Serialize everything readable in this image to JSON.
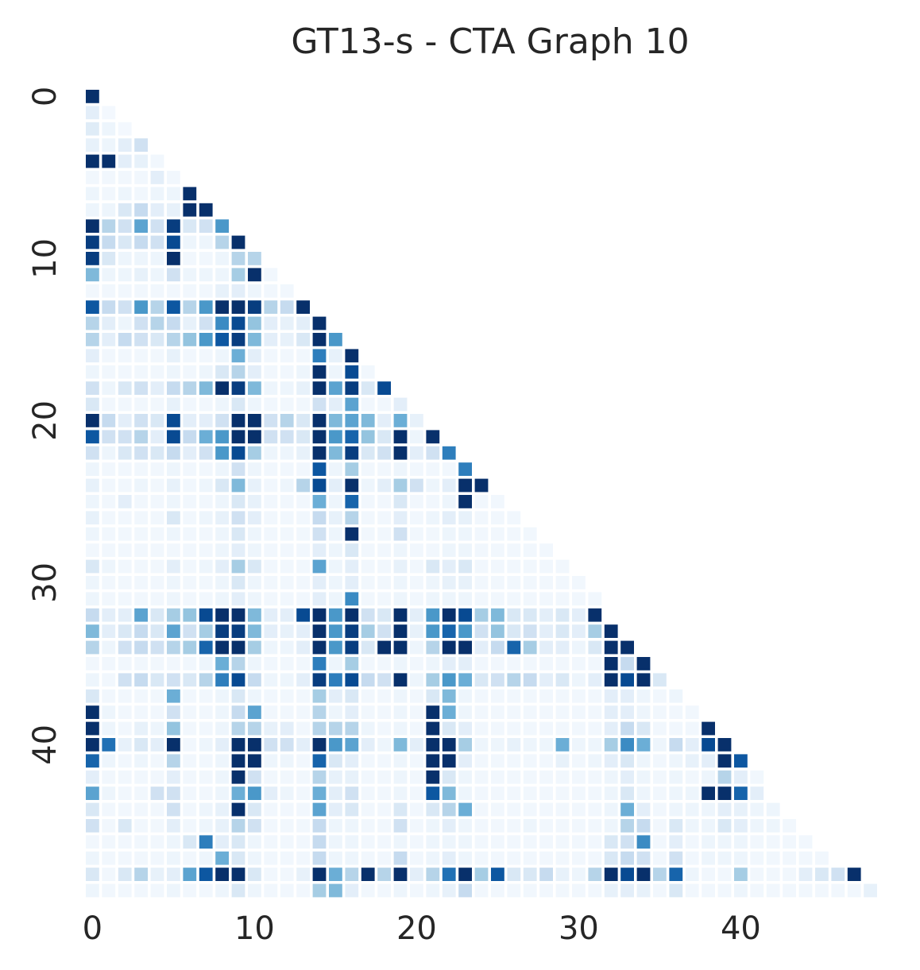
{
  "chart_data": {
    "type": "heatmap",
    "title": "GT13-s - CTA Graph 10",
    "colormap": "Blues",
    "mask": "upper-triangle",
    "n": 49,
    "value_range": [
      0,
      1
    ],
    "x_ticks": [
      {
        "index": 0,
        "label": "0"
      },
      {
        "index": 10,
        "label": "10"
      },
      {
        "index": 20,
        "label": "20"
      },
      {
        "index": 30,
        "label": "30"
      },
      {
        "index": 40,
        "label": "40"
      }
    ],
    "y_ticks": [
      {
        "index": 0,
        "label": "0"
      },
      {
        "index": 10,
        "label": "10"
      },
      {
        "index": 20,
        "label": "20"
      },
      {
        "index": 30,
        "label": "30"
      },
      {
        "index": 40,
        "label": "40"
      }
    ],
    "rows": [
      [
        1.0
      ],
      [
        0.1,
        0.02
      ],
      [
        0.12,
        0.05,
        0.02
      ],
      [
        0.08,
        0.05,
        0.1,
        0.2
      ],
      [
        1.0,
        1.0,
        0.1,
        0.08,
        0.03
      ],
      [
        0.03,
        0.03,
        0.03,
        0.03,
        0.1,
        0.03
      ],
      [
        0.05,
        0.03,
        0.05,
        0.03,
        0.05,
        0.05,
        1.0
      ],
      [
        0.05,
        0.05,
        0.15,
        0.25,
        0.1,
        0.08,
        1.0,
        1.0
      ],
      [
        1.0,
        0.3,
        0.2,
        0.55,
        0.2,
        0.95,
        0.15,
        0.2,
        0.6
      ],
      [
        0.95,
        0.25,
        0.15,
        0.25,
        0.2,
        0.9,
        0.05,
        0.05,
        0.3,
        1.0
      ],
      [
        0.95,
        0.15,
        0.05,
        0.05,
        0.05,
        1.0,
        0.03,
        0.03,
        0.05,
        0.3,
        0.3
      ],
      [
        0.45,
        0.05,
        0.05,
        0.08,
        0.05,
        0.2,
        0.05,
        0.05,
        0.05,
        0.35,
        1.0,
        0.03
      ],
      [
        0.03,
        0.03,
        0.03,
        0.03,
        0.03,
        0.03,
        0.03,
        0.03,
        0.08,
        0.1,
        0.05,
        0.03,
        0.03
      ],
      [
        0.85,
        0.25,
        0.2,
        0.6,
        0.3,
        0.85,
        0.3,
        0.6,
        1.0,
        1.0,
        0.95,
        0.3,
        0.25,
        1.0
      ],
      [
        0.3,
        0.1,
        0.05,
        0.2,
        0.3,
        0.25,
        0.08,
        0.2,
        0.65,
        0.9,
        0.4,
        0.1,
        0.08,
        0.1,
        1.0
      ],
      [
        0.3,
        0.1,
        0.25,
        0.2,
        0.15,
        0.3,
        0.4,
        0.6,
        0.85,
        0.95,
        0.45,
        0.1,
        0.08,
        0.15,
        1.0,
        0.6
      ],
      [
        0.1,
        0.03,
        0.03,
        0.03,
        0.03,
        0.08,
        0.03,
        0.03,
        0.05,
        0.5,
        0.1,
        0.03,
        0.03,
        0.03,
        0.7,
        0.08,
        1.0
      ],
      [
        0.05,
        0.03,
        0.03,
        0.03,
        0.03,
        0.05,
        0.03,
        0.05,
        0.15,
        0.3,
        0.1,
        0.03,
        0.03,
        0.05,
        1.0,
        0.05,
        0.9,
        0.03
      ],
      [
        0.2,
        0.05,
        0.15,
        0.2,
        0.1,
        0.25,
        0.3,
        0.45,
        1.0,
        0.95,
        0.45,
        0.05,
        0.05,
        0.08,
        1.0,
        0.55,
        0.95,
        0.15,
        0.9
      ],
      [
        0.15,
        0.03,
        0.03,
        0.03,
        0.03,
        0.08,
        0.03,
        0.03,
        0.05,
        0.15,
        0.05,
        0.03,
        0.03,
        0.03,
        0.2,
        0.1,
        0.55,
        0.03,
        0.03,
        0.1
      ],
      [
        1.0,
        0.25,
        0.1,
        0.2,
        0.15,
        0.9,
        0.1,
        0.1,
        0.2,
        1.0,
        1.0,
        0.2,
        0.3,
        0.15,
        1.0,
        0.45,
        0.55,
        0.45,
        0.1,
        0.5,
        0.08
      ],
      [
        0.85,
        0.2,
        0.2,
        0.3,
        0.1,
        0.9,
        0.25,
        0.5,
        0.6,
        1.0,
        1.0,
        0.2,
        0.2,
        0.15,
        1.0,
        0.6,
        0.8,
        0.4,
        0.15,
        1.0,
        0.05,
        1.0
      ],
      [
        0.2,
        0.05,
        0.15,
        0.2,
        0.15,
        0.25,
        0.1,
        0.2,
        0.6,
        0.9,
        0.35,
        0.05,
        0.05,
        0.08,
        1.0,
        0.45,
        0.95,
        0.15,
        0.2,
        1.0,
        0.1,
        0.2,
        0.7
      ],
      [
        0.05,
        0.03,
        0.03,
        0.03,
        0.03,
        0.05,
        0.03,
        0.03,
        0.05,
        0.2,
        0.05,
        0.03,
        0.03,
        0.03,
        0.85,
        0.05,
        0.35,
        0.03,
        0.03,
        0.05,
        0.03,
        0.03,
        0.03,
        0.7
      ],
      [
        0.08,
        0.03,
        0.03,
        0.05,
        0.03,
        0.08,
        0.03,
        0.05,
        0.15,
        0.45,
        0.08,
        0.03,
        0.05,
        0.3,
        0.9,
        0.1,
        1.0,
        0.05,
        0.1,
        0.35,
        0.2,
        0.05,
        0.1,
        1.0,
        1.0
      ],
      [
        0.05,
        0.03,
        0.1,
        0.03,
        0.03,
        0.05,
        0.03,
        0.03,
        0.05,
        0.15,
        0.08,
        0.03,
        0.03,
        0.03,
        0.5,
        0.05,
        0.8,
        0.03,
        0.03,
        0.15,
        0.03,
        0.03,
        0.05,
        1.0,
        0.03,
        0.03
      ],
      [
        0.08,
        0.03,
        0.03,
        0.03,
        0.03,
        0.15,
        0.03,
        0.05,
        0.08,
        0.2,
        0.1,
        0.03,
        0.03,
        0.03,
        0.25,
        0.08,
        0.3,
        0.03,
        0.03,
        0.1,
        0.03,
        0.05,
        0.1,
        0.08,
        0.03,
        0.03,
        0.03
      ],
      [
        0.05,
        0.03,
        0.03,
        0.03,
        0.03,
        0.05,
        0.03,
        0.03,
        0.05,
        0.15,
        0.05,
        0.03,
        0.03,
        0.03,
        0.2,
        0.05,
        1.0,
        0.03,
        0.03,
        0.2,
        0.03,
        0.03,
        0.05,
        0.05,
        0.03,
        0.03,
        0.03,
        0.03
      ],
      [
        0.03,
        0.03,
        0.03,
        0.03,
        0.03,
        0.03,
        0.03,
        0.03,
        0.05,
        0.1,
        0.05,
        0.03,
        0.03,
        0.03,
        0.1,
        0.05,
        0.15,
        0.03,
        0.03,
        0.05,
        0.03,
        0.03,
        0.05,
        0.05,
        0.03,
        0.03,
        0.03,
        0.03,
        0.03
      ],
      [
        0.15,
        0.05,
        0.03,
        0.03,
        0.03,
        0.1,
        0.03,
        0.05,
        0.1,
        0.35,
        0.15,
        0.03,
        0.03,
        0.03,
        0.55,
        0.05,
        0.1,
        0.03,
        0.03,
        0.08,
        0.03,
        0.15,
        0.1,
        0.15,
        0.03,
        0.03,
        0.03,
        0.03,
        0.03,
        0.03
      ],
      [
        0.05,
        0.03,
        0.03,
        0.03,
        0.03,
        0.05,
        0.03,
        0.03,
        0.05,
        0.15,
        0.05,
        0.03,
        0.03,
        0.03,
        0.1,
        0.05,
        0.1,
        0.03,
        0.03,
        0.05,
        0.03,
        0.05,
        0.08,
        0.08,
        0.03,
        0.03,
        0.03,
        0.03,
        0.03,
        0.03,
        0.03
      ],
      [
        0.05,
        0.03,
        0.03,
        0.03,
        0.03,
        0.05,
        0.03,
        0.03,
        0.05,
        0.1,
        0.05,
        0.03,
        0.03,
        0.03,
        0.1,
        0.05,
        0.65,
        0.03,
        0.03,
        0.05,
        0.03,
        0.05,
        0.05,
        0.05,
        0.03,
        0.03,
        0.03,
        0.03,
        0.03,
        0.03,
        0.03,
        0.03
      ],
      [
        0.25,
        0.1,
        0.1,
        0.55,
        0.15,
        0.35,
        0.4,
        0.9,
        1.0,
        1.0,
        0.45,
        0.1,
        0.1,
        0.9,
        1.0,
        0.6,
        1.0,
        0.2,
        0.15,
        1.0,
        0.1,
        0.6,
        1.0,
        0.9,
        0.35,
        0.45,
        0.15,
        0.15,
        0.1,
        0.15,
        0.1,
        1.0
      ],
      [
        0.45,
        0.1,
        0.15,
        0.25,
        0.15,
        0.55,
        0.2,
        0.35,
        0.95,
        0.95,
        0.45,
        0.1,
        0.08,
        0.1,
        1.0,
        0.6,
        0.95,
        0.35,
        0.2,
        1.0,
        0.08,
        0.6,
        0.8,
        0.6,
        0.2,
        0.4,
        0.15,
        0.2,
        0.1,
        0.15,
        0.1,
        0.35,
        1.0
      ],
      [
        0.3,
        0.05,
        0.2,
        0.25,
        0.2,
        0.3,
        0.35,
        0.8,
        1.0,
        1.0,
        0.35,
        0.05,
        0.05,
        0.1,
        1.0,
        0.6,
        0.95,
        0.15,
        1.0,
        1.0,
        0.05,
        0.3,
        1.0,
        1.0,
        0.1,
        0.25,
        0.8,
        0.35,
        0.1,
        0.1,
        0.05,
        0.15,
        1.0,
        1.0
      ],
      [
        0.03,
        0.03,
        0.03,
        0.03,
        0.03,
        0.03,
        0.03,
        0.05,
        0.5,
        0.3,
        0.05,
        0.03,
        0.03,
        0.03,
        0.7,
        0.05,
        0.35,
        0.03,
        0.03,
        0.05,
        0.03,
        0.05,
        0.1,
        0.1,
        0.03,
        0.03,
        0.03,
        0.03,
        0.03,
        0.03,
        0.03,
        0.03,
        1.0,
        0.25,
        1.0
      ],
      [
        0.05,
        0.03,
        0.2,
        0.25,
        0.15,
        0.2,
        0.15,
        0.3,
        0.7,
        0.9,
        0.25,
        0.05,
        0.05,
        0.1,
        0.95,
        0.7,
        0.9,
        0.25,
        0.2,
        1.0,
        0.05,
        0.35,
        0.6,
        0.5,
        0.15,
        0.2,
        0.3,
        0.25,
        0.1,
        0.15,
        0.05,
        0.1,
        1.0,
        0.9,
        1.0,
        0.15
      ],
      [
        0.15,
        0.03,
        0.03,
        0.03,
        0.03,
        0.5,
        0.03,
        0.03,
        0.05,
        0.15,
        0.05,
        0.03,
        0.03,
        0.03,
        0.35,
        0.1,
        0.15,
        0.03,
        0.03,
        0.05,
        0.03,
        0.15,
        0.45,
        0.05,
        0.03,
        0.03,
        0.03,
        0.03,
        0.03,
        0.03,
        0.03,
        0.03,
        0.1,
        0.1,
        0.05,
        0.03,
        0.05
      ],
      [
        1.0,
        0.05,
        0.03,
        0.03,
        0.03,
        0.2,
        0.03,
        0.03,
        0.05,
        0.25,
        0.55,
        0.03,
        0.03,
        0.03,
        0.3,
        0.05,
        0.1,
        0.03,
        0.03,
        0.05,
        0.03,
        1.0,
        0.5,
        0.05,
        0.03,
        0.03,
        0.03,
        0.03,
        0.03,
        0.03,
        0.03,
        0.03,
        0.1,
        0.1,
        0.05,
        0.03,
        0.03,
        0.03
      ],
      [
        1.0,
        0.05,
        0.03,
        0.08,
        0.05,
        0.4,
        0.03,
        0.03,
        0.05,
        0.3,
        0.3,
        0.08,
        0.1,
        0.03,
        0.3,
        0.3,
        0.3,
        0.05,
        0.03,
        0.05,
        0.03,
        1.0,
        0.15,
        0.1,
        0.03,
        0.03,
        0.03,
        0.03,
        0.03,
        0.03,
        0.03,
        0.03,
        0.1,
        0.25,
        0.15,
        0.03,
        0.03,
        0.03,
        1.0
      ],
      [
        1.0,
        0.75,
        0.08,
        0.15,
        0.1,
        1.0,
        0.03,
        0.05,
        0.1,
        1.0,
        1.0,
        0.2,
        0.2,
        0.1,
        1.0,
        0.6,
        0.55,
        0.1,
        0.05,
        0.45,
        0.1,
        1.0,
        1.0,
        0.35,
        0.05,
        0.05,
        0.08,
        0.05,
        0.05,
        0.5,
        0.05,
        0.05,
        0.35,
        0.65,
        0.5,
        0.05,
        0.25,
        0.1,
        0.9,
        1.0
      ],
      [
        0.8,
        0.05,
        0.03,
        0.05,
        0.03,
        0.3,
        0.03,
        0.03,
        0.05,
        1.0,
        1.0,
        0.05,
        0.05,
        0.03,
        0.8,
        0.15,
        0.1,
        0.03,
        0.03,
        0.05,
        0.03,
        1.0,
        1.0,
        0.1,
        0.03,
        0.03,
        0.03,
        0.03,
        0.03,
        0.08,
        0.03,
        0.05,
        0.1,
        0.15,
        0.05,
        0.03,
        0.05,
        0.08,
        0.1,
        1.0,
        0.85
      ],
      [
        0.1,
        0.03,
        0.03,
        0.03,
        0.03,
        0.1,
        0.03,
        0.03,
        0.05,
        1.0,
        0.2,
        0.03,
        0.03,
        0.03,
        0.3,
        0.08,
        0.08,
        0.03,
        0.03,
        0.05,
        0.03,
        1.0,
        0.15,
        0.05,
        0.03,
        0.03,
        0.03,
        0.03,
        0.03,
        0.03,
        0.03,
        0.03,
        0.05,
        0.1,
        0.05,
        0.03,
        0.05,
        0.03,
        0.05,
        0.3,
        0.1,
        0.03
      ],
      [
        0.55,
        0.05,
        0.03,
        0.03,
        0.2,
        0.2,
        0.03,
        0.03,
        0.05,
        0.5,
        0.6,
        0.1,
        0.05,
        0.03,
        0.5,
        0.1,
        0.2,
        0.03,
        0.03,
        0.05,
        0.03,
        0.85,
        0.45,
        0.05,
        0.03,
        0.03,
        0.03,
        0.03,
        0.03,
        0.03,
        0.03,
        0.03,
        0.05,
        0.15,
        0.05,
        0.03,
        0.05,
        0.05,
        1.0,
        1.0,
        0.8,
        0.1
      ],
      [
        0.15,
        0.03,
        0.03,
        0.03,
        0.03,
        0.2,
        0.03,
        0.05,
        0.08,
        1.0,
        0.15,
        0.03,
        0.03,
        0.03,
        0.55,
        0.1,
        0.15,
        0.03,
        0.03,
        0.15,
        0.03,
        0.15,
        0.3,
        0.5,
        0.03,
        0.03,
        0.03,
        0.03,
        0.03,
        0.03,
        0.03,
        0.03,
        0.05,
        0.5,
        0.1,
        0.03,
        0.05,
        0.05,
        0.05,
        0.1,
        0.08,
        0.05,
        0.05
      ],
      [
        0.2,
        0.03,
        0.15,
        0.03,
        0.03,
        0.1,
        0.03,
        0.05,
        0.08,
        0.3,
        0.2,
        0.03,
        0.03,
        0.03,
        0.25,
        0.05,
        0.05,
        0.03,
        0.03,
        0.2,
        0.03,
        0.05,
        0.1,
        0.05,
        0.03,
        0.03,
        0.03,
        0.05,
        0.03,
        0.03,
        0.03,
        0.03,
        0.05,
        0.3,
        0.25,
        0.03,
        0.15,
        0.05,
        0.05,
        0.15,
        0.1,
        0.05,
        0.05,
        0.03
      ],
      [
        0.03,
        0.03,
        0.03,
        0.03,
        0.03,
        0.05,
        0.15,
        0.7,
        0.1,
        0.15,
        0.05,
        0.03,
        0.03,
        0.03,
        0.25,
        0.05,
        0.05,
        0.03,
        0.03,
        0.05,
        0.03,
        0.05,
        0.05,
        0.05,
        0.03,
        0.03,
        0.03,
        0.03,
        0.03,
        0.03,
        0.03,
        0.03,
        0.15,
        0.2,
        0.65,
        0.03,
        0.1,
        0.03,
        0.05,
        0.05,
        0.05,
        0.03,
        0.03,
        0.03,
        0.03
      ],
      [
        0.05,
        0.03,
        0.03,
        0.03,
        0.03,
        0.05,
        0.03,
        0.05,
        0.5,
        0.15,
        0.05,
        0.03,
        0.03,
        0.03,
        0.25,
        0.05,
        0.05,
        0.03,
        0.03,
        0.25,
        0.03,
        0.05,
        0.1,
        0.05,
        0.03,
        0.03,
        0.03,
        0.03,
        0.03,
        0.03,
        0.03,
        0.03,
        0.15,
        0.25,
        0.2,
        0.03,
        0.2,
        0.03,
        0.05,
        0.05,
        0.05,
        0.03,
        0.03,
        0.03,
        0.03,
        0.03
      ],
      [
        0.15,
        0.03,
        0.15,
        0.3,
        0.08,
        0.1,
        0.55,
        0.85,
        1.0,
        1.0,
        0.15,
        0.03,
        0.03,
        0.08,
        1.0,
        0.5,
        0.3,
        1.0,
        0.3,
        1.0,
        0.1,
        0.3,
        0.75,
        1.0,
        0.35,
        0.85,
        0.15,
        0.15,
        0.25,
        0.08,
        0.05,
        0.3,
        1.0,
        0.9,
        1.0,
        0.3,
        0.8,
        0.05,
        0.03,
        0.03,
        0.35,
        0.03,
        0.03,
        0.03,
        0.1,
        0.15,
        0.2,
        1.0
      ],
      [
        0.05,
        0.03,
        0.03,
        0.03,
        0.03,
        0.05,
        0.03,
        0.03,
        0.05,
        0.15,
        0.05,
        0.03,
        0.03,
        0.03,
        0.35,
        0.45,
        0.1,
        0.03,
        0.03,
        0.05,
        0.03,
        0.05,
        0.08,
        0.25,
        0.03,
        0.03,
        0.03,
        0.03,
        0.03,
        0.03,
        0.03,
        0.03,
        0.08,
        0.1,
        0.08,
        0.03,
        0.15,
        0.03,
        0.03,
        0.03,
        0.05,
        0.03,
        0.03,
        0.03,
        0.03,
        0.03,
        0.03,
        0.03,
        0.08
      ]
    ]
  }
}
